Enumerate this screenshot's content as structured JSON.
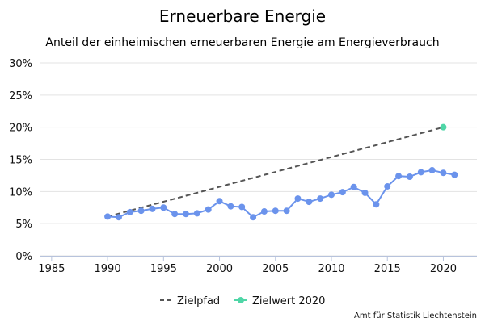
{
  "chart_data": {
    "type": "line",
    "title": "Erneuerbare Energie",
    "subtitle": "Anteil der einheimischen erneuerbaren Energie am Energieverbrauch",
    "credit": "Amt für Statistik Liechtenstein",
    "xlabel": "",
    "ylabel": "",
    "xlim": [
      1984,
      2023
    ],
    "ylim": [
      0,
      30
    ],
    "x_ticks": [
      1985,
      1990,
      1995,
      2000,
      2005,
      2010,
      2015,
      2020
    ],
    "x_tick_labels": [
      "1985",
      "1990",
      "1995",
      "2000",
      "2005",
      "2010",
      "2015",
      "2020"
    ],
    "y_ticks": [
      0,
      5,
      10,
      15,
      20,
      25,
      30
    ],
    "y_tick_labels": [
      "0%",
      "5%",
      "10%",
      "15%",
      "20%",
      "25%",
      "30%"
    ],
    "grid": "horizontal",
    "legend_position": "bottom",
    "series": [
      {
        "name": "",
        "style": "solid-markers",
        "color": "#6b93ec",
        "in_legend": false,
        "x": [
          1990,
          1991,
          1992,
          1993,
          1994,
          1995,
          1996,
          1997,
          1998,
          1999,
          2000,
          2001,
          2002,
          2003,
          2004,
          2005,
          2006,
          2007,
          2008,
          2009,
          2010,
          2011,
          2012,
          2013,
          2014,
          2015,
          2016,
          2017,
          2018,
          2019,
          2020,
          2021
        ],
        "y": [
          6.1,
          6.0,
          6.8,
          7.0,
          7.3,
          7.5,
          6.5,
          6.5,
          6.6,
          7.2,
          8.5,
          7.7,
          7.6,
          6.0,
          6.9,
          7.0,
          7.0,
          8.9,
          8.4,
          8.9,
          9.5,
          9.9,
          10.7,
          9.8,
          8.0,
          10.8,
          12.4,
          12.3,
          13.0,
          13.3,
          12.9,
          12.6
        ]
      },
      {
        "name": "Zielpfad",
        "style": "dashed",
        "color": "#555555",
        "in_legend": true,
        "x": [
          1990,
          2020
        ],
        "y": [
          6.1,
          20.0
        ]
      },
      {
        "name": "Zielwert 2020",
        "style": "marker",
        "color": "#4fd6a7",
        "in_legend": true,
        "x": [
          2020
        ],
        "y": [
          20.0
        ]
      }
    ]
  }
}
